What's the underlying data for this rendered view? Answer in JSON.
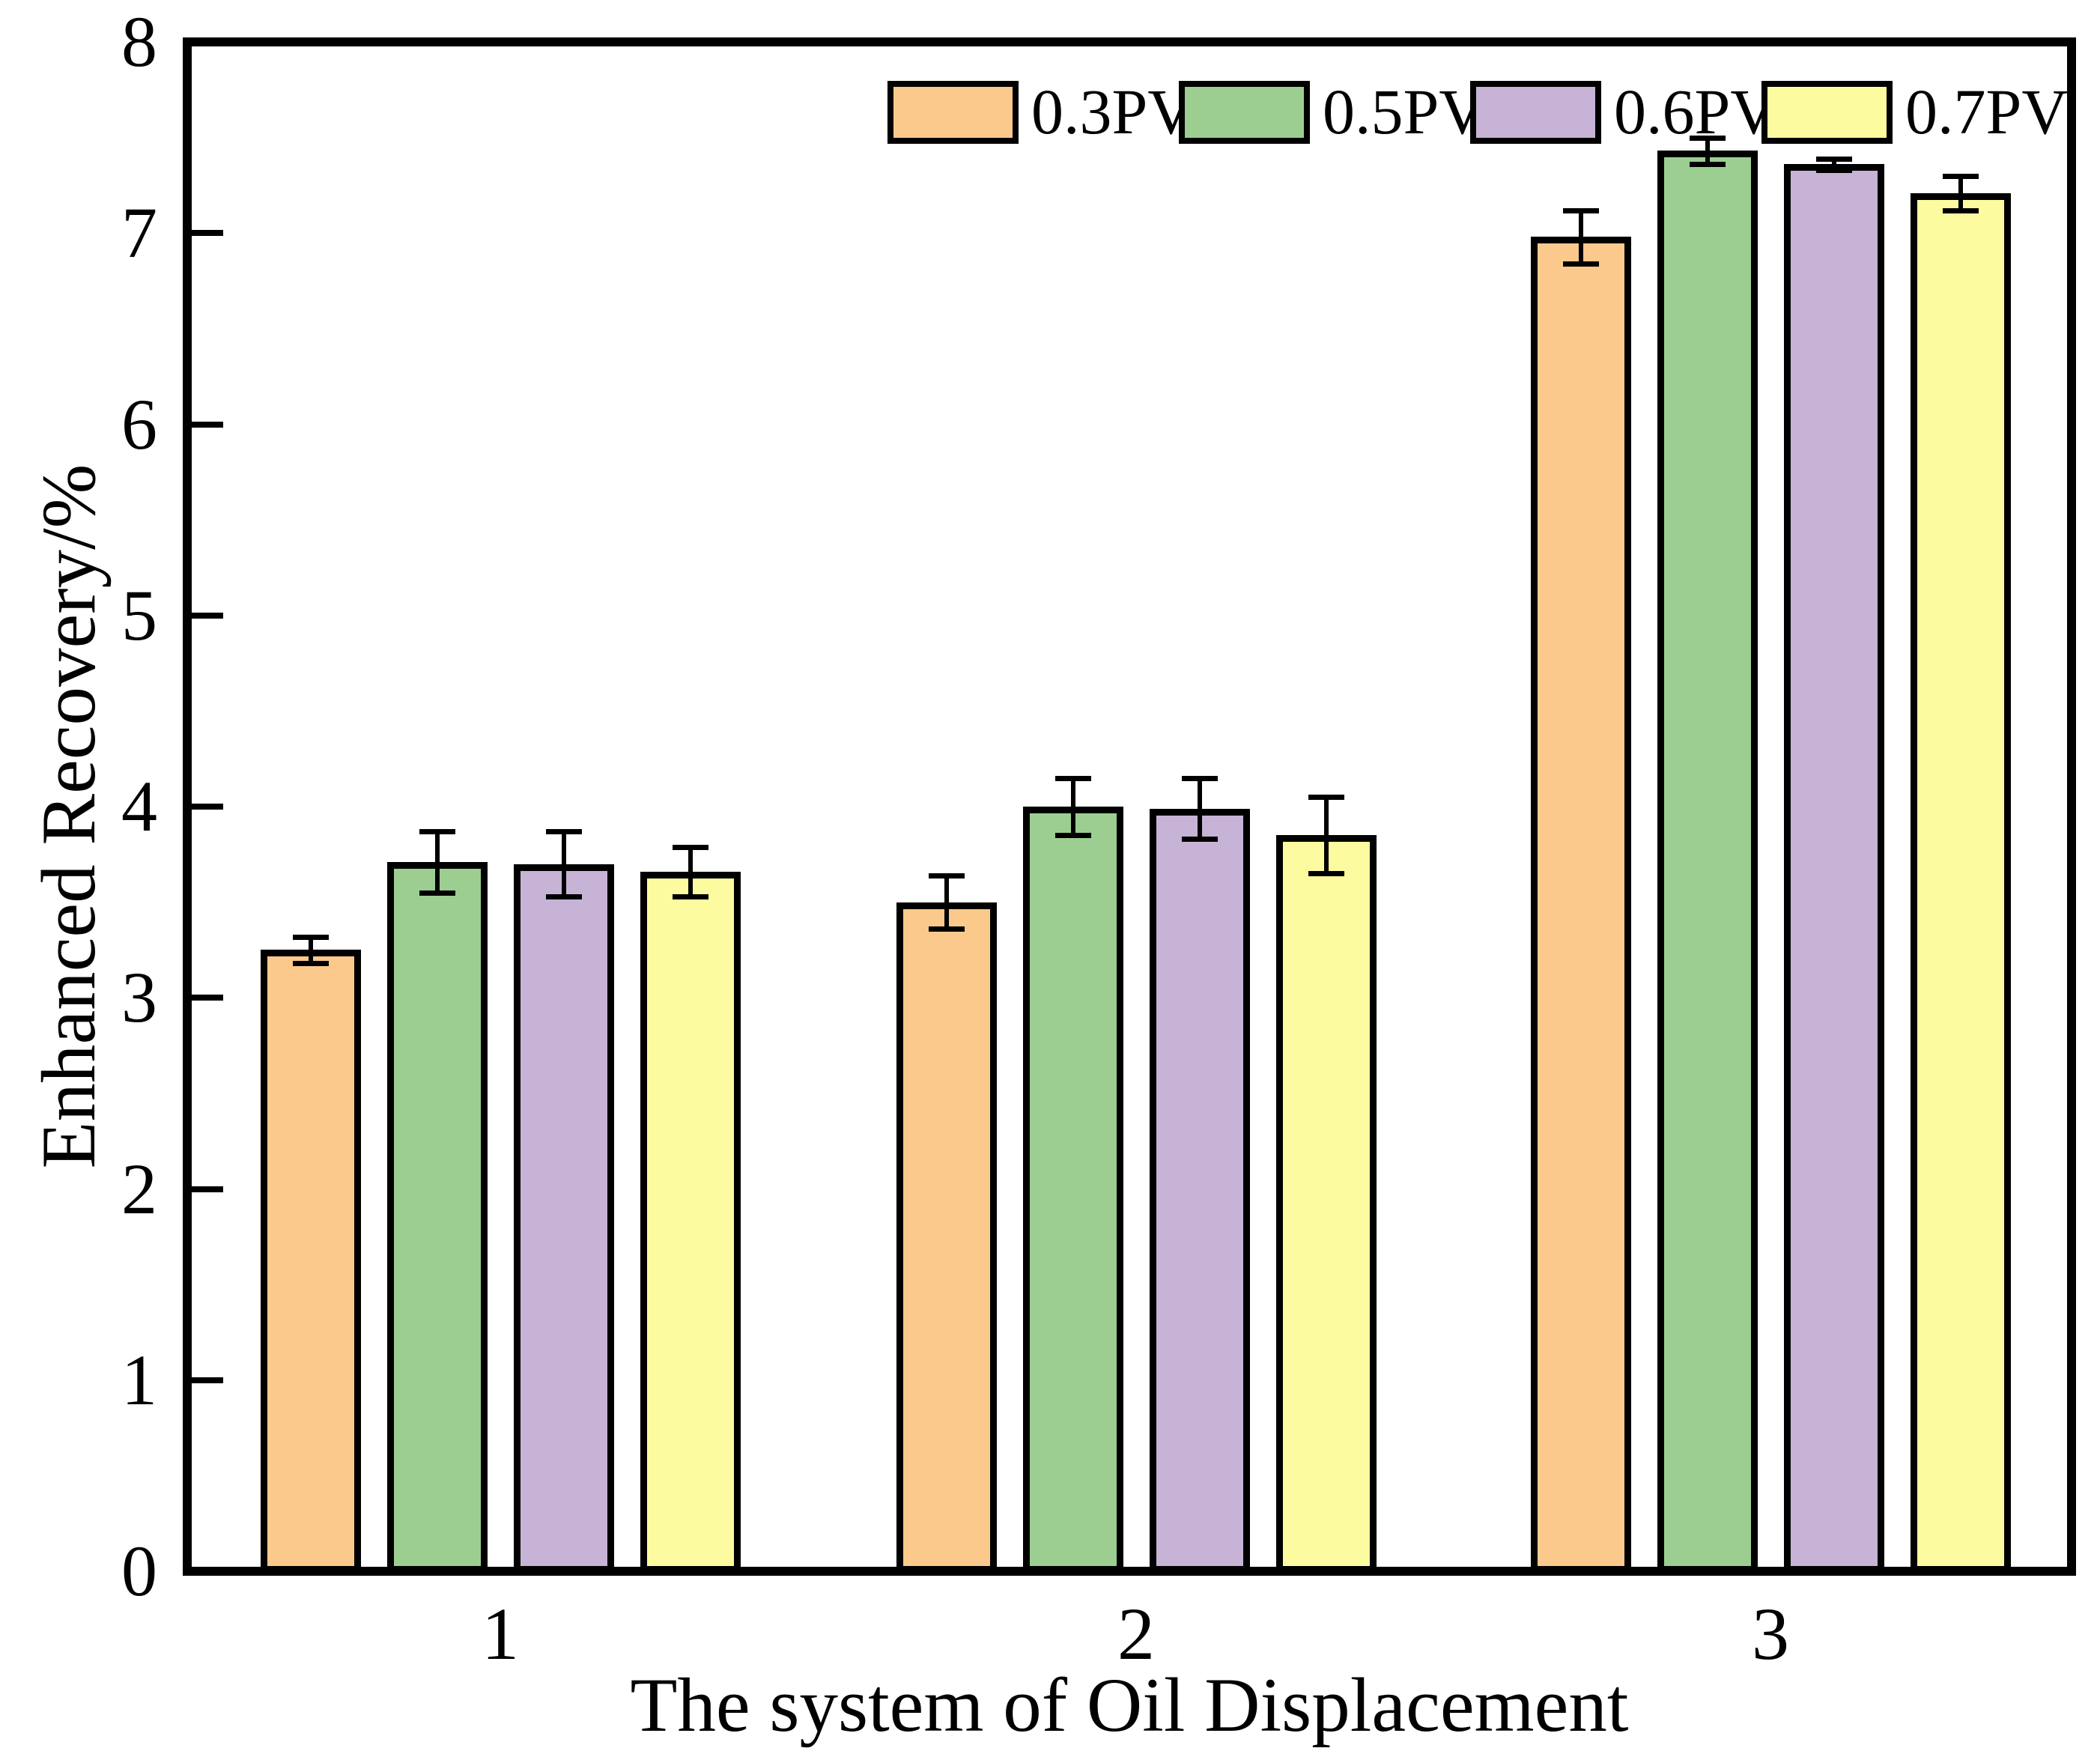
{
  "figure": {
    "background_color": "#FFFFFF",
    "text_color": "#000000",
    "frame_color": "#000000"
  },
  "chart_data": {
    "type": "bar",
    "title": "",
    "xlabel": "The system of Oil Displacement",
    "ylabel": "Enhanced Recovery/%",
    "categories": [
      "1",
      "2",
      "3"
    ],
    "ylim": [
      0,
      8
    ],
    "ytick_labels": [
      "0",
      "1",
      "2",
      "3",
      "4",
      "5",
      "6",
      "7",
      "8"
    ],
    "grid": false,
    "legend_position": "top-center-inside",
    "error_bars": true,
    "series": [
      {
        "name": "0.3PV",
        "color": "#FBC98C",
        "values": [
          3.25,
          3.5,
          6.98
        ],
        "errors": [
          0.07,
          0.14,
          0.14
        ]
      },
      {
        "name": "0.5PV",
        "color": "#9CCE92",
        "values": [
          3.71,
          4.0,
          7.43
        ],
        "errors": [
          0.16,
          0.15,
          0.07
        ]
      },
      {
        "name": "0.6PV",
        "color": "#C6B3D6",
        "values": [
          3.7,
          3.99,
          7.36
        ],
        "errors": [
          0.17,
          0.16,
          0.03
        ]
      },
      {
        "name": "0.7PV",
        "color": "#FDFB9F",
        "values": [
          3.66,
          3.85,
          7.21
        ],
        "errors": [
          0.13,
          0.2,
          0.09
        ]
      }
    ]
  }
}
